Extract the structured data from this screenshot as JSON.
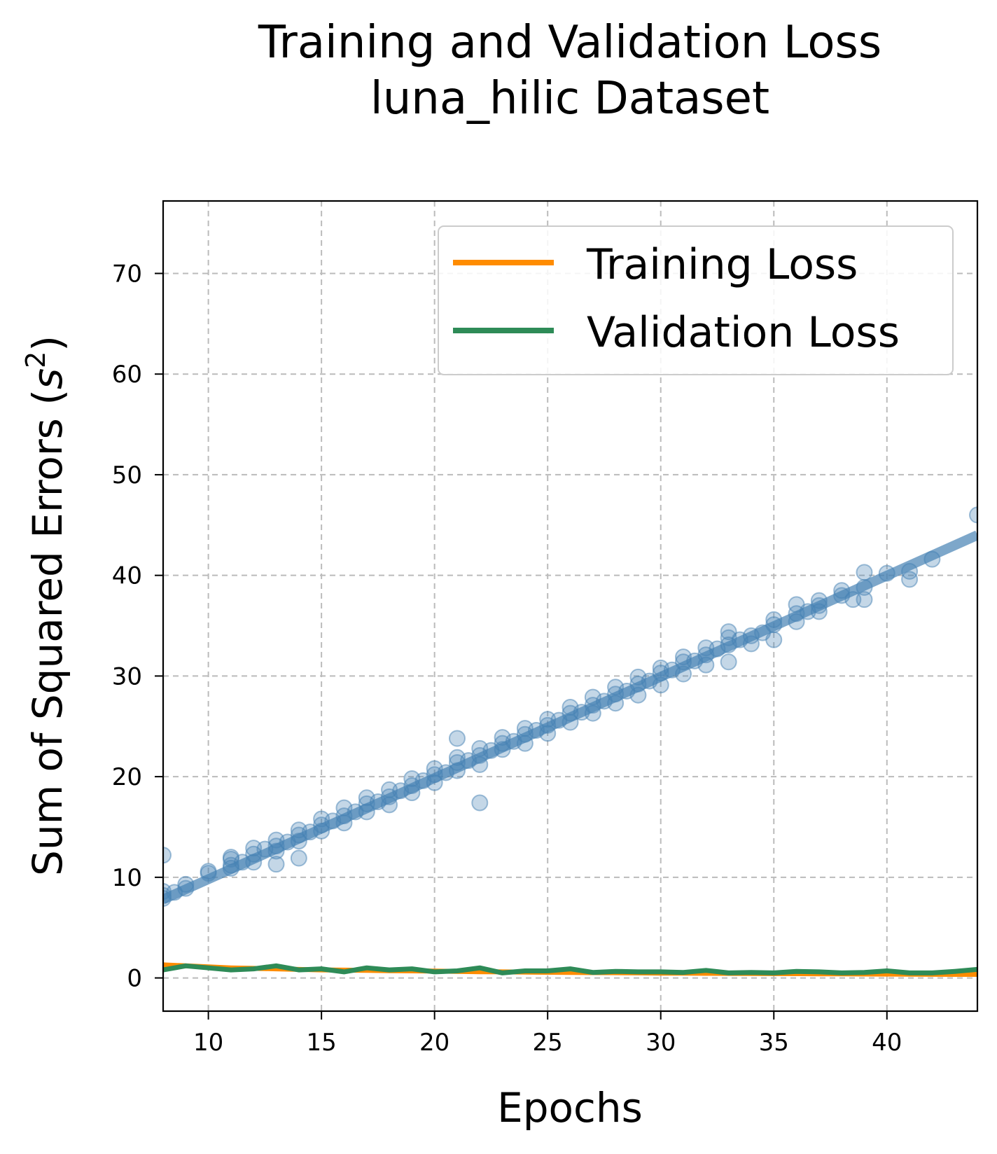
{
  "chart_data": {
    "type": "line",
    "title": "Training and Validation Loss",
    "subtitle": "luna_hilic Dataset",
    "xlabel": "Epochs",
    "ylabel_main": "Sum of Squared Errors (",
    "ylabel_var": "s",
    "ylabel_sup": "2",
    "ylabel_close": ")",
    "xlim": [
      8,
      44
    ],
    "ylim": [
      -3.3,
      77.2
    ],
    "xticks": [
      10,
      15,
      20,
      25,
      30,
      35,
      40
    ],
    "yticks": [
      0,
      10,
      20,
      30,
      40,
      50,
      60,
      70
    ],
    "grid": true,
    "legend_position": "top-right",
    "series": [
      {
        "name": "Training Loss",
        "color": "#ff8c00",
        "x": [
          8,
          9,
          10,
          11,
          12,
          13,
          14,
          15,
          16,
          17,
          18,
          19,
          20,
          21,
          22,
          23,
          24,
          25,
          26,
          27,
          28,
          29,
          30,
          31,
          32,
          33,
          34,
          35,
          36,
          37,
          38,
          39,
          40,
          41,
          42,
          43,
          44
        ],
        "y": [
          1.3,
          1.2,
          1.1,
          1.0,
          0.95,
          0.9,
          0.85,
          0.8,
          0.78,
          0.75,
          0.72,
          0.7,
          0.68,
          0.65,
          0.62,
          0.6,
          0.58,
          0.56,
          0.55,
          0.53,
          0.52,
          0.5,
          0.48,
          0.47,
          0.46,
          0.45,
          0.44,
          0.43,
          0.42,
          0.41,
          0.4,
          0.39,
          0.38,
          0.37,
          0.36,
          0.35,
          0.35
        ]
      },
      {
        "name": "Validation Loss",
        "color": "#2e8b57",
        "x": [
          8,
          9,
          10,
          11,
          12,
          13,
          14,
          15,
          16,
          17,
          18,
          19,
          20,
          21,
          22,
          23,
          24,
          25,
          26,
          27,
          28,
          29,
          30,
          31,
          32,
          33,
          34,
          35,
          36,
          37,
          38,
          39,
          40,
          41,
          42,
          43,
          44
        ],
        "y": [
          0.8,
          1.2,
          1.0,
          0.8,
          0.9,
          1.2,
          0.8,
          0.9,
          0.6,
          1.0,
          0.8,
          0.9,
          0.6,
          0.7,
          1.0,
          0.5,
          0.7,
          0.7,
          0.9,
          0.55,
          0.65,
          0.6,
          0.6,
          0.55,
          0.75,
          0.5,
          0.55,
          0.5,
          0.65,
          0.6,
          0.5,
          0.55,
          0.7,
          0.5,
          0.5,
          0.65,
          0.85
        ]
      }
    ],
    "scatter": {
      "color": "#4682b4",
      "points": [
        [
          8,
          8.2
        ],
        [
          8,
          8.6
        ],
        [
          8,
          7.9
        ],
        [
          8,
          12.2
        ],
        [
          8.5,
          8.5
        ],
        [
          9,
          8.9
        ],
        [
          9,
          9.3
        ],
        [
          10,
          10.4
        ],
        [
          10,
          10.6
        ],
        [
          11,
          11.2
        ],
        [
          11,
          11.8
        ],
        [
          11,
          12.0
        ],
        [
          11,
          10.9
        ],
        [
          11.5,
          11.5
        ],
        [
          12,
          12.3
        ],
        [
          12,
          12.9
        ],
        [
          12,
          11.5
        ],
        [
          12.5,
          12.8
        ],
        [
          13,
          13.1
        ],
        [
          13,
          13.7
        ],
        [
          13,
          11.3
        ],
        [
          13,
          12.6
        ],
        [
          13.5,
          13.5
        ],
        [
          14,
          14.2
        ],
        [
          14,
          14.7
        ],
        [
          14,
          11.9
        ],
        [
          14,
          13.6
        ],
        [
          14.5,
          14.5
        ],
        [
          15,
          15.2
        ],
        [
          15,
          15.8
        ],
        [
          15,
          14.6
        ],
        [
          15.5,
          15.6
        ],
        [
          16,
          16.1
        ],
        [
          16,
          16.9
        ],
        [
          16,
          15.4
        ],
        [
          16.5,
          16.5
        ],
        [
          17,
          17.3
        ],
        [
          17,
          17.9
        ],
        [
          17,
          16.5
        ],
        [
          17.5,
          17.5
        ],
        [
          18,
          18.0
        ],
        [
          18,
          18.7
        ],
        [
          18,
          17.2
        ],
        [
          18.5,
          18.6
        ],
        [
          19,
          19.1
        ],
        [
          19,
          19.8
        ],
        [
          19,
          18.4
        ],
        [
          19.5,
          19.6
        ],
        [
          20,
          20.2
        ],
        [
          20,
          20.8
        ],
        [
          20,
          19.4
        ],
        [
          20.5,
          20.4
        ],
        [
          21,
          21.4
        ],
        [
          21,
          21.9
        ],
        [
          21,
          23.8
        ],
        [
          21,
          20.6
        ],
        [
          21.5,
          21.6
        ],
        [
          22,
          22.1
        ],
        [
          22,
          22.8
        ],
        [
          22,
          17.4
        ],
        [
          22,
          21.2
        ],
        [
          22.5,
          22.6
        ],
        [
          23,
          23.3
        ],
        [
          23,
          23.9
        ],
        [
          23,
          22.7
        ],
        [
          23.5,
          23.5
        ],
        [
          24,
          24.2
        ],
        [
          24,
          24.8
        ],
        [
          24,
          23.3
        ],
        [
          24.5,
          24.6
        ],
        [
          25,
          25.1
        ],
        [
          25,
          25.7
        ],
        [
          25,
          24.3
        ],
        [
          25.5,
          25.6
        ],
        [
          26,
          26.3
        ],
        [
          26,
          26.9
        ],
        [
          26,
          25.4
        ],
        [
          26.5,
          26.4
        ],
        [
          27,
          27.1
        ],
        [
          27,
          27.9
        ],
        [
          27,
          26.3
        ],
        [
          27.5,
          27.5
        ],
        [
          28,
          28.2
        ],
        [
          28,
          28.9
        ],
        [
          28,
          27.3
        ],
        [
          28.5,
          28.5
        ],
        [
          29,
          29.2
        ],
        [
          29,
          29.9
        ],
        [
          29,
          28.1
        ],
        [
          29.5,
          29.5
        ],
        [
          30,
          30.3
        ],
        [
          30,
          30.8
        ],
        [
          30,
          29.1
        ],
        [
          30.5,
          30.6
        ],
        [
          31,
          31.4
        ],
        [
          31,
          31.9
        ],
        [
          31,
          30.2
        ],
        [
          31.5,
          31.5
        ],
        [
          32,
          32.1
        ],
        [
          32,
          32.8
        ],
        [
          32,
          31.1
        ],
        [
          32.5,
          32.7
        ],
        [
          33,
          33.1
        ],
        [
          33,
          33.8
        ],
        [
          33,
          31.4
        ],
        [
          33,
          34.4
        ],
        [
          33.5,
          33.6
        ],
        [
          34,
          34.0
        ],
        [
          34,
          33.2
        ],
        [
          34.5,
          34.3
        ],
        [
          35,
          35.1
        ],
        [
          35,
          35.6
        ],
        [
          35,
          33.6
        ],
        [
          36,
          36.2
        ],
        [
          36,
          37.1
        ],
        [
          36,
          35.4
        ],
        [
          36.5,
          36.4
        ],
        [
          37,
          37.0
        ],
        [
          37,
          37.5
        ],
        [
          37,
          36.4
        ],
        [
          38,
          38.0
        ],
        [
          38,
          38.5
        ],
        [
          38.5,
          37.6
        ],
        [
          39,
          38.8
        ],
        [
          39,
          40.3
        ],
        [
          39,
          37.6
        ],
        [
          40,
          40.2
        ],
        [
          41,
          40.4
        ],
        [
          41,
          39.6
        ],
        [
          42,
          41.6
        ],
        [
          44,
          46.0
        ]
      ],
      "fit": {
        "x": [
          8,
          44
        ],
        "y": [
          7.8,
          44.0
        ]
      }
    }
  }
}
